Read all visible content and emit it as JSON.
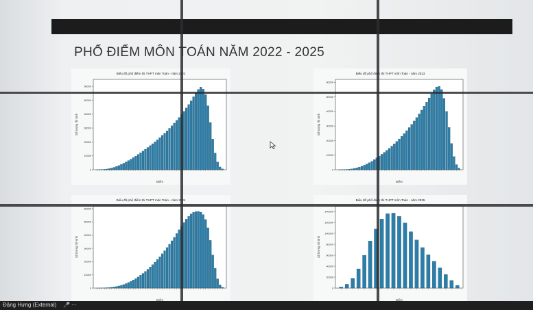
{
  "slide": {
    "title": "PHỔ ĐIỂM MÔN TOÁN NĂM 2022 - 2025"
  },
  "footer": {
    "presenter": "Đặng Hưng (External)"
  },
  "colors": {
    "bar": "#2b7ea9",
    "bar_edge": "#0e3a52",
    "frame": "#444444"
  },
  "chart_data": [
    {
      "type": "bar",
      "title": "Biểu đồ phổ điểm thi THPT môn Toán - năm 2022",
      "xlabel": "Điểm",
      "ylabel": "Số lượng thí sinh",
      "ylim": [
        0,
        65000
      ],
      "yticks": [
        0,
        10000,
        20000,
        30000,
        40000,
        50000,
        60000
      ],
      "values": [
        30,
        80,
        150,
        300,
        500,
        800,
        1200,
        1700,
        2300,
        3000,
        3800,
        4700,
        5600,
        6600,
        7600,
        8700,
        9800,
        11000,
        12200,
        13400,
        14700,
        16000,
        17300,
        18700,
        20100,
        21600,
        23100,
        24700,
        26300,
        28000,
        29800,
        31600,
        33500,
        35500,
        37600,
        39800,
        42000,
        44400,
        46900,
        49600,
        52500,
        55200,
        57800,
        59500,
        58000,
        54000,
        46000,
        34000,
        22000,
        12000,
        5500,
        2000,
        600
      ]
    },
    {
      "type": "bar",
      "title": "Biểu đồ phổ điểm thi THPT môn Toán - năm 2023",
      "xlabel": "Điểm",
      "ylabel": "Số lượng thí sinh",
      "ylim": [
        0,
        62000
      ],
      "yticks": [
        0,
        10000,
        20000,
        30000,
        40000,
        50000,
        60000
      ],
      "values": [
        20,
        60,
        120,
        220,
        380,
        600,
        900,
        1300,
        1800,
        2400,
        3100,
        3900,
        4800,
        5800,
        6900,
        8100,
        9300,
        10600,
        11900,
        13300,
        14700,
        16200,
        17800,
        19400,
        21100,
        22900,
        24800,
        26800,
        28900,
        31100,
        33400,
        35800,
        38300,
        40900,
        43600,
        46400,
        49300,
        52200,
        54900,
        56800,
        57200,
        55000,
        49000,
        40000,
        29000,
        18000,
        9000,
        3500,
        1000
      ]
    },
    {
      "type": "bar",
      "title": "Biểu đồ phổ điểm thi THPT môn Toán - năm 2024",
      "xlabel": "Điểm",
      "ylabel": "Số lượng thí sinh",
      "ylim": [
        0,
        62000
      ],
      "yticks": [
        0,
        10000,
        20000,
        30000,
        40000,
        50000,
        60000
      ],
      "values": [
        20,
        50,
        100,
        180,
        300,
        450,
        650,
        900,
        1200,
        1600,
        2100,
        2700,
        3400,
        4200,
        5100,
        6100,
        7200,
        8400,
        9700,
        11100,
        12600,
        14200,
        15900,
        17700,
        19600,
        21600,
        23700,
        25900,
        28200,
        30600,
        33100,
        35700,
        38400,
        41200,
        44000,
        46800,
        49500,
        52000,
        54200,
        56000,
        57200,
        57800,
        57900,
        57300,
        55500,
        51800,
        45500,
        36000,
        25000,
        15000,
        7000,
        2500,
        700
      ]
    },
    {
      "type": "bar",
      "title": "Biểu đồ phổ điểm thi THPT môn Toán - năm 2025",
      "xlabel": "Điểm",
      "ylabel": "Số lượng thí sinh",
      "ylim": [
        0,
        150000
      ],
      "yticks": [
        0,
        20000,
        40000,
        60000,
        80000,
        100000,
        120000,
        140000
      ],
      "values": [
        2000,
        7000,
        18000,
        35000,
        60000,
        86000,
        108000,
        126000,
        136000,
        137000,
        131000,
        119000,
        103000,
        88000,
        74000,
        61000,
        49000,
        37000,
        25000,
        14000,
        5000
      ]
    }
  ]
}
